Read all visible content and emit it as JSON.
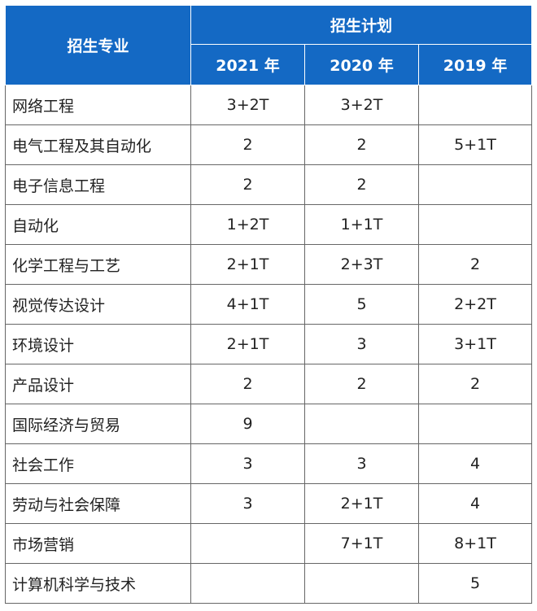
{
  "table": {
    "header": {
      "major_label": "招生专业",
      "plan_label": "招生计划",
      "years": [
        "2021 年",
        "2020 年",
        "2019 年"
      ]
    },
    "rows": [
      {
        "major": "网络工程",
        "y2021": "3+2T",
        "y2020": "3+2T",
        "y2019": ""
      },
      {
        "major": "电气工程及其自动化",
        "y2021": "2",
        "y2020": "2",
        "y2019": "5+1T"
      },
      {
        "major": "电子信息工程",
        "y2021": "2",
        "y2020": "2",
        "y2019": ""
      },
      {
        "major": "自动化",
        "y2021": "1+2T",
        "y2020": "1+1T",
        "y2019": ""
      },
      {
        "major": "化学工程与工艺",
        "y2021": "2+1T",
        "y2020": "2+3T",
        "y2019": "2"
      },
      {
        "major": "视觉传达设计",
        "y2021": "4+1T",
        "y2020": "5",
        "y2019": "2+2T"
      },
      {
        "major": "环境设计",
        "y2021": "2+1T",
        "y2020": "3",
        "y2019": "3+1T"
      },
      {
        "major": "产品设计",
        "y2021": "2",
        "y2020": "2",
        "y2019": "2"
      },
      {
        "major": "国际经济与贸易",
        "y2021": "9",
        "y2020": "",
        "y2019": ""
      },
      {
        "major": "社会工作",
        "y2021": "3",
        "y2020": "3",
        "y2019": "4"
      },
      {
        "major": "劳动与社会保障",
        "y2021": "3",
        "y2020": "2+1T",
        "y2019": "4"
      },
      {
        "major": "市场营销",
        "y2021": "",
        "y2020": "7+1T",
        "y2019": "8+1T"
      },
      {
        "major": "计算机科学与技术",
        "y2021": "",
        "y2020": "",
        "y2019": "5"
      }
    ]
  }
}
